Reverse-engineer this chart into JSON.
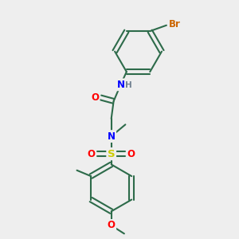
{
  "background_color": "#eeeeee",
  "bond_color": "#2d6b4a",
  "bond_width": 1.5,
  "atom_colors": {
    "Br": "#cc6600",
    "N": "#0000ff",
    "O": "#ff0000",
    "S": "#cccc00",
    "C": "#2d6b4a",
    "H": "#708090"
  },
  "font_size": 8.5,
  "fig_size": [
    3.0,
    3.0
  ],
  "dpi": 100
}
